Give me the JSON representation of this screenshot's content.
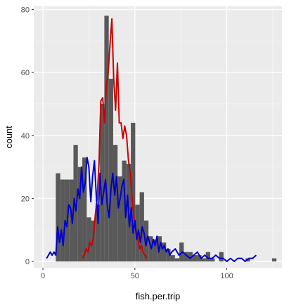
{
  "chart_data": {
    "type": "bar",
    "xlabel": "fish.per.trip",
    "ylabel": "count",
    "xlim": [
      -5,
      130
    ],
    "ylim": [
      -2,
      81
    ],
    "x_ticks": [
      0,
      50,
      100
    ],
    "y_ticks": [
      0,
      20,
      40,
      60,
      80
    ],
    "x_tick_labels": [
      "0",
      "50",
      "100"
    ],
    "y_tick_labels": [
      "0",
      "20",
      "40",
      "60",
      "80"
    ],
    "grid": true,
    "legend": "none",
    "bin_width": 2.4,
    "histogram": {
      "bin_starts": [
        7.0,
        9.4,
        11.8,
        14.2,
        16.6,
        19.0,
        21.4,
        23.8,
        26.2,
        28.6,
        31.0,
        33.4,
        35.8,
        38.2,
        40.6,
        43.0,
        45.4,
        47.8,
        50.2,
        52.6,
        55.0,
        57.4,
        59.8,
        62.2,
        64.6,
        67.0,
        69.4,
        71.8,
        74.2,
        76.6,
        79.0,
        81.4,
        83.8,
        86.2,
        88.6,
        91.0,
        93.4,
        95.8,
        98.2,
        100.6,
        103.0,
        105.4,
        107.8,
        110.2,
        112.6,
        115.0,
        117.4,
        119.8,
        122.2,
        124.6
      ],
      "counts": [
        28,
        26,
        26,
        26,
        37,
        30,
        33,
        14,
        13,
        18,
        50,
        78,
        58,
        37,
        27,
        32,
        31,
        44,
        18,
        22,
        13,
        8,
        7,
        8,
        6,
        4,
        2,
        1,
        6,
        3,
        3,
        2,
        2,
        1,
        3,
        1,
        0,
        3,
        0,
        0,
        0,
        0,
        0,
        1,
        0,
        0,
        0,
        0,
        0,
        1
      ]
    },
    "series": [
      {
        "color": "#cc0000",
        "x": [
          21.5,
          22.5,
          23.5,
          24.5,
          25.5,
          26.5,
          27.5,
          28.5,
          29.5,
          30.5,
          31.5,
          32.5,
          33.5,
          34.5,
          35.5,
          36.5,
          37.5,
          38.5,
          39.5,
          40.5,
          41.5,
          42.5,
          43.5,
          44.5,
          45.5,
          46.5,
          47.5,
          48.5,
          49.5,
          50.5,
          51.5,
          52.5,
          53.5,
          54.5,
          55.5,
          56.5
        ],
        "y": [
          1,
          2,
          4,
          3,
          6,
          5,
          8,
          15,
          20,
          31,
          51,
          52,
          44,
          56,
          60,
          69,
          77,
          58,
          48,
          63,
          44,
          44,
          39,
          43,
          40,
          32,
          28,
          20,
          14,
          10,
          8,
          4,
          5,
          3,
          2,
          1
        ]
      },
      {
        "color": "#0000cc",
        "x": [
          2,
          3,
          4,
          5,
          6,
          7,
          8,
          9,
          10,
          11,
          12,
          13,
          14,
          15,
          16,
          17,
          18,
          19,
          20,
          21,
          22,
          23,
          24,
          25,
          26,
          27,
          28,
          29,
          30,
          31,
          32,
          33,
          34,
          35,
          36,
          37,
          38,
          39,
          40,
          41,
          42,
          43,
          44,
          45,
          46,
          47,
          48,
          49,
          50,
          51,
          52,
          53,
          54,
          55,
          56,
          57,
          58,
          59,
          60,
          61,
          62,
          63,
          64,
          65,
          66,
          67,
          68,
          69,
          70,
          72,
          74,
          76,
          78,
          80,
          82,
          84,
          86,
          88,
          90,
          92,
          94,
          96,
          98,
          100,
          102,
          104,
          106,
          108,
          110,
          112,
          114,
          116
        ],
        "y": [
          1,
          2,
          3,
          2,
          3,
          2,
          11,
          6,
          10,
          5,
          13,
          11,
          18,
          17,
          12,
          20,
          16,
          23,
          20,
          30,
          22,
          25,
          33,
          30,
          19,
          27,
          32,
          21,
          12,
          28,
          18,
          22,
          26,
          18,
          14,
          23,
          28,
          21,
          27,
          17,
          20,
          24,
          26,
          14,
          21,
          11,
          17,
          9,
          13,
          7,
          10,
          6,
          11,
          9,
          5,
          8,
          6,
          4,
          7,
          5,
          8,
          3,
          6,
          4,
          5,
          3,
          4,
          2,
          3,
          4,
          2,
          3,
          2,
          1,
          2,
          3,
          1,
          2,
          1,
          1,
          2,
          1,
          1,
          0,
          1,
          0,
          1,
          1,
          0,
          1,
          1,
          2
        ]
      }
    ]
  }
}
